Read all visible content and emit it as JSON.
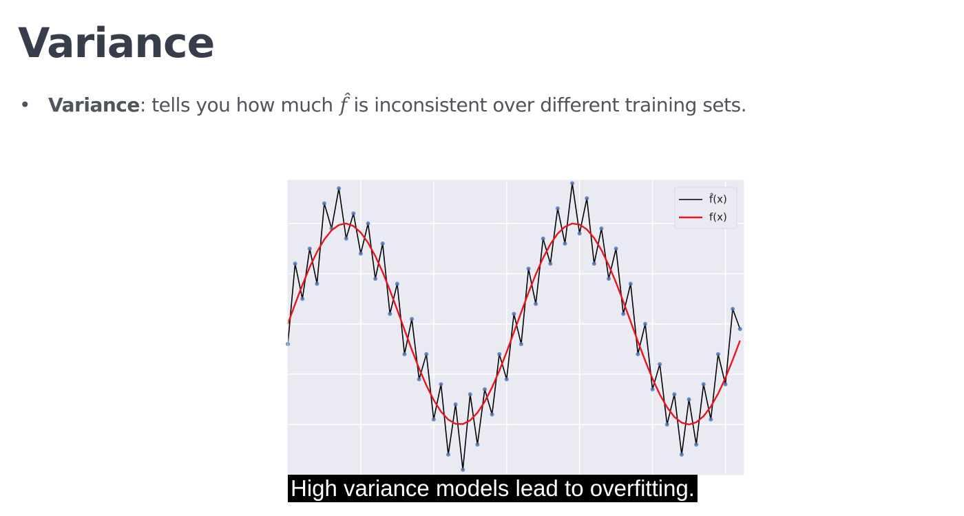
{
  "header": {
    "title": "Variance"
  },
  "bullets": [
    {
      "term": "Variance",
      "text_before": ": tells you how much",
      "symbol": "f̂",
      "text_after": "is inconsistent over different training sets."
    }
  ],
  "chart_data": {
    "type": "line",
    "x": [
      0,
      0.1,
      0.2,
      0.3,
      0.4,
      0.5,
      0.6,
      0.7,
      0.8,
      0.9,
      1,
      1.1,
      1.2,
      1.3,
      1.4,
      1.5,
      1.6,
      1.7,
      1.8,
      1.9,
      2,
      2.1,
      2.2,
      2.3,
      2.4,
      2.5,
      2.6,
      2.7,
      2.8,
      2.9,
      3,
      3.1,
      3.2,
      3.3,
      3.4,
      3.5,
      3.6,
      3.7,
      3.8,
      3.9,
      4,
      4.1,
      4.2,
      4.3,
      4.4,
      4.5,
      4.6,
      4.7,
      4.8,
      4.9,
      5,
      5.1,
      5.2,
      5.3,
      5.4,
      5.5,
      5.6,
      5.7,
      5.8,
      5.9,
      6,
      6.1,
      6.2
    ],
    "series": [
      {
        "name": "f̂(x)",
        "color": "#000000",
        "marker_color": "#4c72b0",
        "values": [
          -0.2,
          0.6,
          0.25,
          0.75,
          0.4,
          1.2,
          0.95,
          1.35,
          0.85,
          1.1,
          0.7,
          1.0,
          0.45,
          0.8,
          0.1,
          0.4,
          -0.3,
          0.05,
          -0.55,
          -0.3,
          -0.95,
          -0.6,
          -1.3,
          -0.8,
          -1.45,
          -0.7,
          -1.2,
          -0.65,
          -0.9,
          -0.3,
          -0.55,
          0.1,
          -0.2,
          0.55,
          0.2,
          0.85,
          0.6,
          1.15,
          0.8,
          1.4,
          0.9,
          1.25,
          0.6,
          0.95,
          0.45,
          0.75,
          0.1,
          0.4,
          -0.3,
          0.0,
          -0.65,
          -0.4,
          -1.0,
          -0.7,
          -1.3,
          -0.75,
          -1.2,
          -0.6,
          -0.95,
          -0.3,
          -0.6,
          0.15,
          -0.05
        ]
      },
      {
        "name": "f(x)",
        "color": "#e8141e",
        "values": [
          0,
          0.199,
          0.389,
          0.565,
          0.717,
          0.841,
          0.932,
          0.985,
          1.0,
          0.974,
          0.909,
          0.808,
          0.675,
          0.516,
          0.335,
          0.141,
          -0.058,
          -0.256,
          -0.443,
          -0.612,
          -0.757,
          -0.872,
          -0.952,
          -0.994,
          -0.996,
          -0.959,
          -0.883,
          -0.773,
          -0.631,
          -0.465,
          -0.279,
          -0.083,
          0.117,
          0.312,
          0.494,
          0.657,
          0.794,
          0.899,
          0.968,
          0.999,
          0.989,
          0.941,
          0.855,
          0.735,
          0.585,
          0.412,
          0.223,
          0.025,
          -0.175,
          -0.366,
          -0.544,
          -0.701,
          -0.829,
          -0.925,
          -0.982,
          -1.0,
          -0.978,
          -0.918,
          -0.822,
          -0.694,
          -0.537,
          -0.357,
          -0.165
        ]
      }
    ],
    "xlim": [
      0,
      6.25
    ],
    "ylim": [
      -1.5,
      1.43
    ],
    "xticks": [
      1,
      2,
      3,
      4,
      5,
      6
    ],
    "yticks": [
      -1,
      -0.5,
      0,
      0.5,
      1
    ],
    "grid": true,
    "legend": "upper right"
  },
  "caption": "High variance models lead to overfitting."
}
